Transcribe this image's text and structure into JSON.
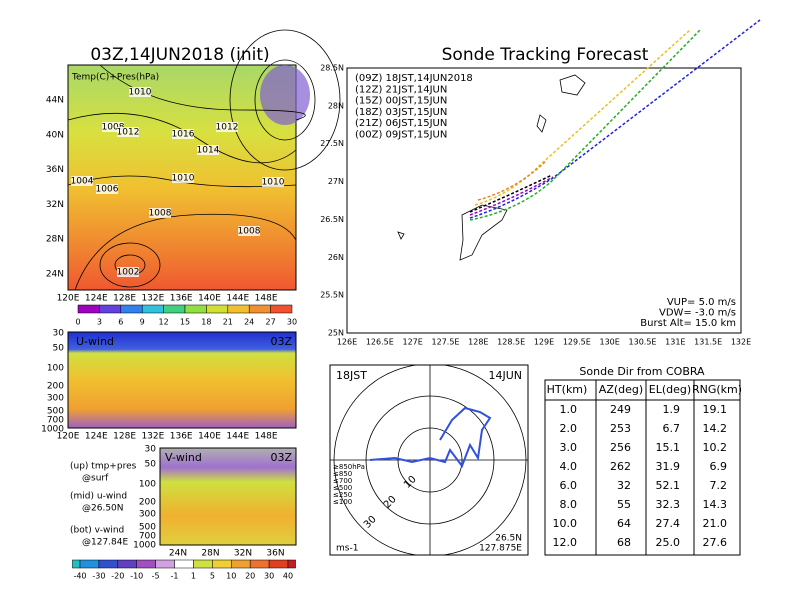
{
  "surface_map": {
    "title": "03Z,14JUN2018 (init)",
    "label": "Temp(C)+Pres(hPa)",
    "lat_labels": [
      "44N",
      "40N",
      "36N",
      "32N",
      "28N",
      "24N"
    ],
    "lon_labels": [
      "120E",
      "124E",
      "128E",
      "132E",
      "136E",
      "140E",
      "144E",
      "148E"
    ],
    "contour_labels": [
      "1010",
      "1008",
      "1012",
      "1016",
      "1012",
      "1014",
      "1004",
      "1006",
      "1010",
      "1010",
      "1008",
      "1008",
      "1002"
    ],
    "colorbar_labels": [
      "0",
      "3",
      "6",
      "9",
      "12",
      "15",
      "18",
      "21",
      "24",
      "27",
      "30"
    ]
  },
  "u_wind": {
    "title": "U-wind",
    "time": "03Z",
    "levels": [
      "30",
      "50",
      "100",
      "200",
      "300",
      "500",
      "700",
      "1000"
    ],
    "lon_labels": [
      "120E",
      "124E",
      "128E",
      "132E",
      "136E",
      "140E",
      "144E",
      "148E"
    ]
  },
  "v_wind": {
    "title": "V-wind",
    "time": "03Z",
    "levels": [
      "30",
      "50",
      "100",
      "200",
      "300",
      "500",
      "700",
      "1000"
    ],
    "lat_labels": [
      "24N",
      "28N",
      "32N",
      "36N"
    ]
  },
  "notes": [
    "(up) tmp+pres",
    "@surf",
    "(mid) u-wind",
    "@26.50N",
    "(bot) v-wind",
    "@127.84E"
  ],
  "wind_colorbar": [
    "-40",
    "-30",
    "-20",
    "-10",
    "-5",
    "-1",
    "1",
    "5",
    "10",
    "20",
    "30",
    "40"
  ],
  "tracking": {
    "title": "Sonde Tracking Forecast",
    "lat_labels": [
      "28.5N",
      "28N",
      "27.5N",
      "27N",
      "26.5N",
      "26N",
      "25.5N",
      "25N"
    ],
    "lon_labels": [
      "126E",
      "126.5E",
      "127E",
      "127.5E",
      "128E",
      "128.5E",
      "129E",
      "129.5E",
      "130E",
      "130.5E",
      "131E",
      "131.5E",
      "132E"
    ],
    "legend": [
      {
        "text": "(09Z) 18JST,14JUN2018",
        "color": "#000000"
      },
      {
        "text": "(12Z) 21JST,14JUN",
        "color": "#a000c0"
      },
      {
        "text": "(15Z) 00JST,15JUN",
        "color": "#2020e0"
      },
      {
        "text": "(18Z) 03JST,15JUN",
        "color": "#20b020"
      },
      {
        "text": "(21Z) 06JST,15JUN",
        "color": "#e8c020"
      },
      {
        "text": "(00Z) 09JST,15JUN",
        "color": "#f08020"
      }
    ],
    "params": [
      "VUP=  5.0 m/s",
      "VDW= -3.0 m/s",
      "Burst Alt= 15.0 km"
    ]
  },
  "hodograph": {
    "time": "18JST",
    "date": "14JUN",
    "lat": "26.5N",
    "lon": "127.875E",
    "unit": "ms-1",
    "rings": [
      "10",
      "20",
      "30"
    ],
    "legend": [
      {
        "text": "≥850hPa",
        "color": "#e02020"
      },
      {
        "text": "≤850",
        "color": "#f08020"
      },
      {
        "text": "≤700",
        "color": "#d0c020"
      },
      {
        "text": "≤500",
        "color": "#20b020"
      },
      {
        "text": "≤250",
        "color": "#20b0e0"
      },
      {
        "text": "≤100",
        "color": "#2020e0"
      }
    ]
  },
  "table": {
    "title": "Sonde Dir from COBRA",
    "header": [
      "HT(km)",
      "AZ(deg)",
      "EL(deg)",
      "RNG(km)"
    ],
    "rows": [
      [
        "1.0",
        "249",
        "1.9",
        "19.1"
      ],
      [
        "2.0",
        "253",
        "6.7",
        "14.2"
      ],
      [
        "3.0",
        "256",
        "15.1",
        "10.2"
      ],
      [
        "4.0",
        "262",
        "31.9",
        "6.9"
      ],
      [
        "6.0",
        "32",
        "52.1",
        "7.2"
      ],
      [
        "8.0",
        "55",
        "32.3",
        "14.3"
      ],
      [
        "10.0",
        "64",
        "27.4",
        "21.0"
      ],
      [
        "12.0",
        "68",
        "25.0",
        "27.6"
      ]
    ]
  }
}
